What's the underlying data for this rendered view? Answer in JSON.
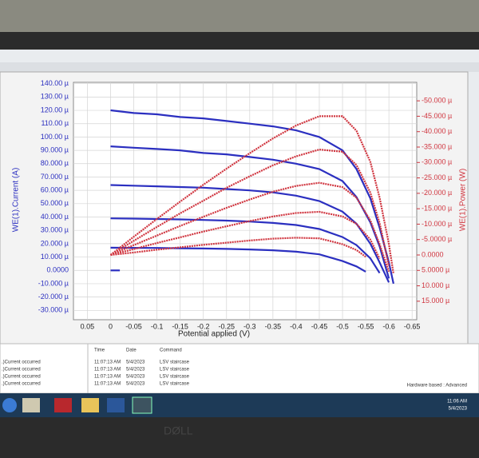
{
  "chart_data": {
    "type": "line",
    "xlabel": "Potential applied (V)",
    "ylabel": "WE(1).Current (A)",
    "y2label": "WE(1).Power (W)",
    "xlim": [
      0.08,
      -0.66
    ],
    "xticks": [
      0.05,
      0,
      -0.05,
      -0.1,
      -0.15,
      -0.2,
      -0.25,
      -0.3,
      -0.35,
      -0.4,
      -0.45,
      -0.5,
      -0.55,
      -0.6,
      -0.65
    ],
    "ylim": [
      -37,
      141
    ],
    "yticks": [
      {
        "value": 140,
        "label": "140.00 µ"
      },
      {
        "value": 130,
        "label": "130.00 µ"
      },
      {
        "value": 120,
        "label": "120.00 µ"
      },
      {
        "value": 110,
        "label": "110.00 µ"
      },
      {
        "value": 100,
        "label": "100.00 µ"
      },
      {
        "value": 90,
        "label": "90.000 µ"
      },
      {
        "value": 80,
        "label": "80.000 µ"
      },
      {
        "value": 70,
        "label": "70.000 µ"
      },
      {
        "value": 60,
        "label": "60.000 µ"
      },
      {
        "value": 50,
        "label": "50.000 µ"
      },
      {
        "value": 40,
        "label": "40.000 µ"
      },
      {
        "value": 30,
        "label": "30.000 µ"
      },
      {
        "value": 20,
        "label": "20.000 µ"
      },
      {
        "value": 10,
        "label": "10.000 µ"
      },
      {
        "value": 0,
        "label": "0.0000"
      },
      {
        "value": -10,
        "label": "-10.000 µ"
      },
      {
        "value": -20,
        "label": "-20.000 µ"
      },
      {
        "value": -30,
        "label": "-30.000 µ"
      }
    ],
    "y2lim": [
      21,
      -56
    ],
    "y2ticks": [
      {
        "value": -50,
        "label": "-50.000 µ"
      },
      {
        "value": -45,
        "label": "-45.000 µ"
      },
      {
        "value": -40,
        "label": "-40.000 µ"
      },
      {
        "value": -35,
        "label": "-35.000 µ"
      },
      {
        "value": -30,
        "label": "-30.000 µ"
      },
      {
        "value": -25,
        "label": "-25.000 µ"
      },
      {
        "value": -20,
        "label": "-20.000 µ"
      },
      {
        "value": -15,
        "label": "-15.000 µ"
      },
      {
        "value": -10,
        "label": "-10.000 µ"
      },
      {
        "value": -5,
        "label": "-5.0000 µ"
      },
      {
        "value": 0,
        "label": "0.0000"
      },
      {
        "value": 5,
        "label": "5.0000 µ"
      },
      {
        "value": 10,
        "label": "10.000 µ"
      },
      {
        "value": 15,
        "label": "15.000 µ"
      }
    ],
    "grid": true,
    "series": [
      {
        "color": "#2b2fc0",
        "x": [
          0,
          -0.05,
          -0.1,
          -0.15,
          -0.2,
          -0.25,
          -0.3,
          -0.35,
          -0.4,
          -0.45,
          -0.5,
          -0.53,
          -0.56,
          -0.58,
          -0.6,
          -0.61
        ],
        "values": [
          120,
          118,
          117,
          115,
          114,
          112,
          110,
          108,
          105,
          100,
          90,
          76,
          54,
          32,
          6,
          -10
        ]
      },
      {
        "color": "#2b2fc0",
        "x": [
          0,
          -0.05,
          -0.1,
          -0.15,
          -0.2,
          -0.25,
          -0.3,
          -0.35,
          -0.4,
          -0.45,
          -0.5,
          -0.53,
          -0.56,
          -0.58,
          -0.6
        ],
        "values": [
          93,
          92,
          91,
          90,
          88,
          87,
          85,
          83,
          80,
          76,
          67,
          55,
          36,
          18,
          -6
        ]
      },
      {
        "color": "#2b2fc0",
        "x": [
          0,
          -0.05,
          -0.1,
          -0.15,
          -0.2,
          -0.25,
          -0.3,
          -0.35,
          -0.4,
          -0.45,
          -0.5,
          -0.53,
          -0.56,
          -0.58,
          -0.6
        ],
        "values": [
          64,
          63.5,
          63,
          62.5,
          62,
          61,
          60,
          58.5,
          56,
          52,
          44,
          35,
          20,
          6,
          -9
        ]
      },
      {
        "color": "#2b2fc0",
        "x": [
          0,
          -0.05,
          -0.1,
          -0.15,
          -0.2,
          -0.25,
          -0.3,
          -0.35,
          -0.4,
          -0.45,
          -0.5,
          -0.53,
          -0.56,
          -0.58
        ],
        "values": [
          39,
          38.8,
          38.5,
          38.2,
          37.8,
          37.3,
          36.6,
          35.6,
          34,
          31,
          25,
          19,
          9,
          -2
        ]
      },
      {
        "color": "#2b2fc0",
        "x": [
          0,
          -0.05,
          -0.1,
          -0.15,
          -0.2,
          -0.25,
          -0.3,
          -0.35,
          -0.4,
          -0.45,
          -0.5,
          -0.53,
          -0.55
        ],
        "values": [
          17,
          16.9,
          16.8,
          16.6,
          16.4,
          16.1,
          15.7,
          15.1,
          14,
          12,
          7,
          3,
          -1
        ]
      },
      {
        "color": "#2b2fc0",
        "x": [
          0,
          -0.02
        ],
        "values": [
          0,
          0
        ]
      },
      {
        "color": "#d0353f",
        "axis": "y2",
        "x": [
          0,
          -0.05,
          -0.1,
          -0.15,
          -0.2,
          -0.25,
          -0.3,
          -0.35,
          -0.4,
          -0.45,
          -0.5,
          -0.53,
          -0.56,
          -0.58,
          -0.6,
          -0.61
        ],
        "values": [
          0,
          -5.9,
          -11.7,
          -17.3,
          -22.8,
          -28,
          -33,
          -37.8,
          -42,
          -45,
          -45,
          -40.3,
          -30.2,
          -18.6,
          -3.6,
          6.1
        ]
      },
      {
        "color": "#d0353f",
        "axis": "y2",
        "x": [
          0,
          -0.05,
          -0.1,
          -0.15,
          -0.2,
          -0.25,
          -0.3,
          -0.35,
          -0.4,
          -0.45,
          -0.5,
          -0.53,
          -0.56,
          -0.58,
          -0.6
        ],
        "values": [
          0,
          -4.6,
          -9.1,
          -13.5,
          -17.6,
          -21.8,
          -25.5,
          -29.1,
          -32,
          -34.2,
          -33.5,
          -29.2,
          -20.2,
          -10.4,
          3.6
        ]
      },
      {
        "color": "#d0353f",
        "axis": "y2",
        "x": [
          0,
          -0.05,
          -0.1,
          -0.15,
          -0.2,
          -0.25,
          -0.3,
          -0.35,
          -0.4,
          -0.45,
          -0.5,
          -0.53,
          -0.56,
          -0.58,
          -0.6
        ],
        "values": [
          0,
          -3.2,
          -6.3,
          -9.4,
          -12.4,
          -15.3,
          -18,
          -20.5,
          -22.4,
          -23.4,
          -22,
          -18.6,
          -11.2,
          -3.5,
          5.4
        ]
      },
      {
        "color": "#d0353f",
        "axis": "y2",
        "x": [
          0,
          -0.05,
          -0.1,
          -0.15,
          -0.2,
          -0.25,
          -0.3,
          -0.35,
          -0.4,
          -0.45,
          -0.5,
          -0.53,
          -0.56,
          -0.58
        ],
        "values": [
          0,
          -1.9,
          -3.9,
          -5.7,
          -7.6,
          -9.3,
          -11,
          -12.5,
          -13.6,
          -14,
          -12.5,
          -10.1,
          -5,
          1.2
        ]
      },
      {
        "color": "#d0353f",
        "axis": "y2",
        "x": [
          0,
          -0.05,
          -0.1,
          -0.15,
          -0.2,
          -0.25,
          -0.3,
          -0.35,
          -0.4,
          -0.45,
          -0.5,
          -0.53,
          -0.55
        ],
        "values": [
          0,
          -0.8,
          -1.7,
          -2.5,
          -3.3,
          -4,
          -4.7,
          -5.3,
          -5.6,
          -5.4,
          -3.5,
          -1.6,
          0.6
        ]
      }
    ]
  },
  "log": {
    "messages": [
      ".)Current occurred",
      ".)Current occurred",
      ".)Current occurred",
      ".)Current occurred"
    ],
    "headers": [
      "Time",
      "Date",
      "Command"
    ],
    "rows": [
      [
        "11:07:13 AM",
        "5/4/2023",
        "LSV staircase"
      ],
      [
        "11:07:13 AM",
        "5/4/2023",
        "LSV staircase"
      ],
      [
        "11:07:13 AM",
        "5/4/2023",
        "LSV staircase"
      ],
      [
        "11:07:13 AM",
        "5/4/2023",
        "LSV staircase"
      ]
    ]
  },
  "status": "Hardware based : Advanced",
  "clock": {
    "time": "11:06 AM",
    "date": "5/4/2023"
  }
}
